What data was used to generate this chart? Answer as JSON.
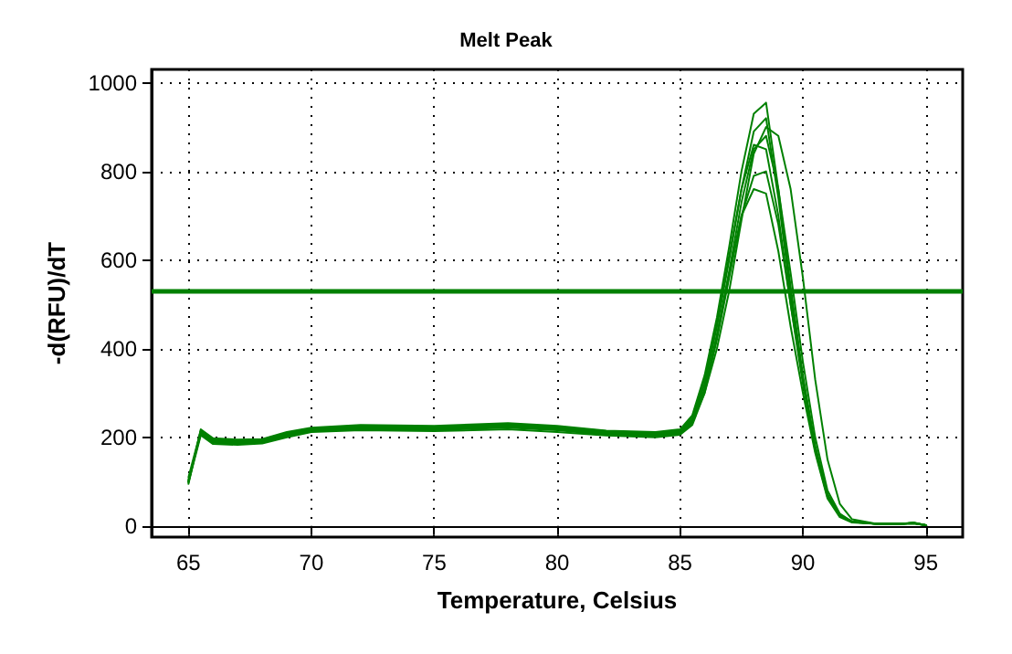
{
  "chart_data": {
    "type": "line",
    "title": "Melt Peak",
    "xlabel": "Temperature, Celsius",
    "ylabel": "-d(RFU)/dT",
    "x": [
      65,
      65.5,
      66,
      67,
      68,
      69,
      70,
      72,
      75,
      78,
      80,
      82,
      84,
      85,
      85.5,
      86,
      86.5,
      87,
      87.5,
      88,
      88.5,
      89,
      89.5,
      90,
      90.5,
      91,
      91.5,
      92,
      93,
      94,
      94.5,
      95
    ],
    "series": [
      {
        "color": "#008000",
        "values": [
          95,
          218,
          198,
          195,
          196,
          212,
          222,
          228,
          226,
          232,
          226,
          215,
          212,
          218,
          250,
          340,
          470,
          630,
          800,
          930,
          955,
          760,
          540,
          340,
          180,
          70,
          25,
          10,
          5,
          5,
          8,
          2
        ]
      },
      {
        "color": "#008000",
        "values": [
          100,
          212,
          192,
          190,
          192,
          206,
          218,
          222,
          220,
          226,
          220,
          210,
          206,
          212,
          240,
          320,
          450,
          600,
          760,
          890,
          920,
          740,
          520,
          330,
          175,
          68,
          22,
          9,
          5,
          5,
          7,
          2
        ]
      },
      {
        "color": "#008000",
        "values": [
          105,
          208,
          188,
          186,
          188,
          202,
          214,
          218,
          216,
          222,
          216,
          206,
          202,
          208,
          232,
          305,
          430,
          575,
          730,
          850,
          880,
          760,
          570,
          370,
          200,
          80,
          28,
          10,
          5,
          5,
          7,
          2
        ]
      },
      {
        "color": "#008000",
        "values": [
          110,
          215,
          196,
          193,
          195,
          210,
          220,
          226,
          224,
          230,
          224,
          214,
          210,
          215,
          245,
          330,
          455,
          610,
          760,
          860,
          850,
          700,
          500,
          320,
          170,
          65,
          22,
          9,
          5,
          5,
          6,
          2
        ]
      },
      {
        "color": "#008000",
        "values": [
          98,
          205,
          185,
          183,
          186,
          200,
          212,
          216,
          214,
          218,
          212,
          204,
          200,
          206,
          228,
          300,
          420,
          560,
          700,
          790,
          800,
          680,
          500,
          330,
          180,
          72,
          25,
          10,
          5,
          5,
          6,
          2
        ]
      },
      {
        "color": "#008000",
        "values": [
          102,
          210,
          190,
          188,
          190,
          204,
          216,
          220,
          218,
          224,
          218,
          208,
          204,
          210,
          235,
          310,
          430,
          570,
          700,
          760,
          750,
          620,
          450,
          300,
          165,
          62,
          20,
          8,
          5,
          5,
          6,
          2
        ]
      },
      {
        "color": "#008000",
        "values": [
          100,
          214,
          194,
          191,
          193,
          208,
          219,
          224,
          222,
          228,
          222,
          212,
          208,
          214,
          238,
          300,
          400,
          530,
          690,
          840,
          900,
          880,
          760,
          560,
          330,
          150,
          50,
          15,
          5,
          5,
          7,
          2
        ]
      }
    ],
    "ref_lines": [
      {
        "axis": "y",
        "value": 530,
        "color": "#008000"
      }
    ],
    "xlim": [
      63.5,
      96.5
    ],
    "xticks": [
      65,
      70,
      75,
      80,
      85,
      90,
      95
    ],
    "ylim": [
      -25,
      1030
    ],
    "yticks": [
      0,
      200,
      400,
      600,
      800,
      1000
    ],
    "grid": true,
    "marker": "none",
    "line_style": "solid"
  }
}
